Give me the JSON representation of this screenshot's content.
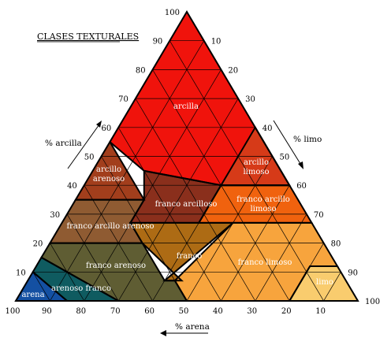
{
  "title": "CLASES TEXTURALES",
  "axes": {
    "clay": {
      "label": "% arcilla",
      "ticks": [
        "10",
        "20",
        "30",
        "40",
        "50",
        "60",
        "70",
        "80",
        "90",
        "100"
      ]
    },
    "silt": {
      "label": "% limo",
      "ticks": [
        "10",
        "20",
        "30",
        "40",
        "50",
        "60",
        "70",
        "80",
        "90",
        "100"
      ]
    },
    "sand": {
      "label": "% arena",
      "ticks": [
        "100",
        "90",
        "80",
        "70",
        "60",
        "50",
        "40",
        "30",
        "20",
        "10"
      ]
    }
  },
  "regions": [
    {
      "id": "arcilla",
      "label": "arcilla",
      "color": "#f0130c"
    },
    {
      "id": "arcillo-limoso",
      "label": "arcillo\nlimoso",
      "color": "#d63a18"
    },
    {
      "id": "arcillo-arenoso",
      "label": "arcillo\narenoso",
      "color": "#a23e1c"
    },
    {
      "id": "franco-arcilloso",
      "label": "franco arcilloso",
      "color": "#8a2f1c"
    },
    {
      "id": "franco-arcillo-limoso",
      "label": "franco arcillo\nlimoso",
      "color": "#f0620e"
    },
    {
      "id": "franco-arcillo-arenoso",
      "label": "franco arcillo arenoso",
      "color": "#8f5b32"
    },
    {
      "id": "franco",
      "label": "franco",
      "color": "#ad6b14"
    },
    {
      "id": "franco-limoso",
      "label": "franco limoso",
      "color": "#f7a43d"
    },
    {
      "id": "limo",
      "label": "limo",
      "color": "#f9cc6e"
    },
    {
      "id": "franco-arenoso",
      "label": "franco arenoso",
      "color": "#5f5d33"
    },
    {
      "id": "arenoso-franco",
      "label": "arenoso franco",
      "color": "#0f5b60"
    },
    {
      "id": "arena",
      "label": "arena",
      "color": "#1450a2"
    }
  ]
}
